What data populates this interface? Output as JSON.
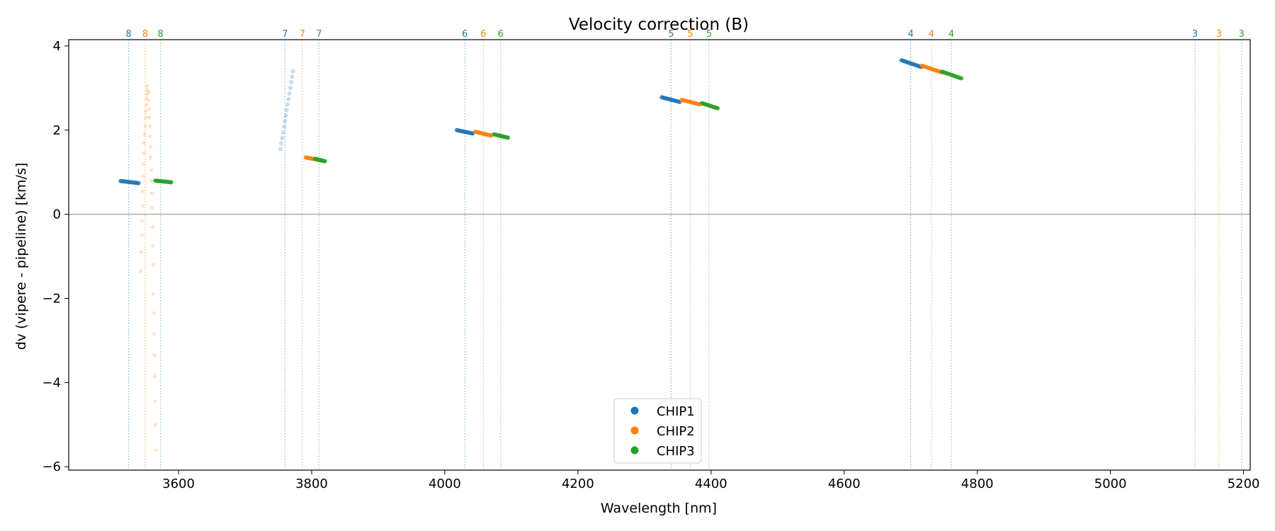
{
  "chart_data": {
    "type": "scatter",
    "title": "Velocity correction (B)",
    "xlabel": "Wavelength [nm]",
    "ylabel": "dv (vipere - pipeline) [km/s]",
    "xlim": [
      3435,
      5210
    ],
    "ylim": [
      -6.08,
      4.15
    ],
    "xticks": [
      3600,
      3800,
      4000,
      4200,
      4400,
      4600,
      4800,
      5000,
      5200
    ],
    "yticks": [
      -6,
      -4,
      -2,
      0,
      2,
      4
    ],
    "xtick_labels": [
      "3600",
      "3800",
      "4000",
      "4200",
      "4400",
      "4600",
      "4800",
      "5000",
      "5200"
    ],
    "ytick_labels": [
      "−6",
      "−4",
      "−2",
      "0",
      "2",
      "4"
    ],
    "zero_line": 0,
    "legend_position": "bottom-center",
    "colors": {
      "CHIP1": "#1f77b4",
      "CHIP2": "#ff7f0e",
      "CHIP3": "#2ca02c",
      "zero": "#888888"
    },
    "series": [
      {
        "name": "CHIP1",
        "color": "#1f77b4"
      },
      {
        "name": "CHIP2",
        "color": "#ff7f0e"
      },
      {
        "name": "CHIP3",
        "color": "#2ca02c"
      }
    ],
    "order_markers": [
      {
        "order": "8",
        "chip": "CHIP1",
        "x": 3525
      },
      {
        "order": "8",
        "chip": "CHIP2",
        "x": 3550
      },
      {
        "order": "8",
        "chip": "CHIP3",
        "x": 3573
      },
      {
        "order": "7",
        "chip": "CHIP1",
        "x": 3760
      },
      {
        "order": "7",
        "chip": "CHIP2",
        "x": 3786
      },
      {
        "order": "7",
        "chip": "CHIP3",
        "x": 3811
      },
      {
        "order": "6",
        "chip": "CHIP1",
        "x": 4030
      },
      {
        "order": "6",
        "chip": "CHIP2",
        "x": 4058
      },
      {
        "order": "6",
        "chip": "CHIP3",
        "x": 4084
      },
      {
        "order": "5",
        "chip": "CHIP1",
        "x": 4340
      },
      {
        "order": "5",
        "chip": "CHIP2",
        "x": 4369
      },
      {
        "order": "5",
        "chip": "CHIP3",
        "x": 4397
      },
      {
        "order": "4",
        "chip": "CHIP1",
        "x": 4700
      },
      {
        "order": "4",
        "chip": "CHIP2",
        "x": 4731
      },
      {
        "order": "4",
        "chip": "CHIP3",
        "x": 4761
      },
      {
        "order": "3",
        "chip": "CHIP1",
        "x": 5127
      },
      {
        "order": "3",
        "chip": "CHIP2",
        "x": 5163
      },
      {
        "order": "3",
        "chip": "CHIP3",
        "x": 5197
      }
    ],
    "segments": [
      {
        "chip": "CHIP1",
        "x": [
          3513,
          3540
        ],
        "y": [
          0.79,
          0.74
        ],
        "alpha": 0.8
      },
      {
        "chip": "CHIP3",
        "x": [
          3565,
          3589
        ],
        "y": [
          0.8,
          0.76
        ],
        "alpha": 0.8
      },
      {
        "chip": "CHIP2",
        "x": [
          3791,
          3811
        ],
        "y": [
          1.35,
          1.29
        ],
        "alpha": 0.8
      },
      {
        "chip": "CHIP3",
        "x": [
          3805,
          3820
        ],
        "y": [
          1.32,
          1.26
        ],
        "alpha": 0.8
      },
      {
        "chip": "CHIP1",
        "x": [
          4018,
          4042
        ],
        "y": [
          2.0,
          1.92
        ],
        "alpha": 0.8
      },
      {
        "chip": "CHIP2",
        "x": [
          4046,
          4070
        ],
        "y": [
          1.96,
          1.87
        ],
        "alpha": 0.8
      },
      {
        "chip": "CHIP3",
        "x": [
          4074,
          4095
        ],
        "y": [
          1.9,
          1.82
        ],
        "alpha": 0.8
      },
      {
        "chip": "CHIP1",
        "x": [
          4326,
          4353
        ],
        "y": [
          2.78,
          2.67
        ],
        "alpha": 0.8
      },
      {
        "chip": "CHIP2",
        "x": [
          4356,
          4383
        ],
        "y": [
          2.72,
          2.61
        ],
        "alpha": 0.8
      },
      {
        "chip": "CHIP3",
        "x": [
          4386,
          4410
        ],
        "y": [
          2.64,
          2.52
        ],
        "alpha": 0.8
      },
      {
        "chip": "CHIP1",
        "x": [
          4686,
          4716
        ],
        "y": [
          3.66,
          3.5
        ],
        "alpha": 0.8
      },
      {
        "chip": "CHIP2",
        "x": [
          4717,
          4747
        ],
        "y": [
          3.53,
          3.37
        ],
        "alpha": 0.8
      },
      {
        "chip": "CHIP3",
        "x": [
          4747,
          4776
        ],
        "y": [
          3.39,
          3.23
        ],
        "alpha": 0.8
      },
      {
        "chip": "CHIP1",
        "x": [
          3753,
          3772
        ],
        "y": [
          1.55,
          3.4
        ],
        "alpha": 0.25
      }
    ],
    "scatter_points": [
      {
        "chip": "CHIP2",
        "x": 3553,
        "y": 3.05
      },
      {
        "chip": "CHIP2",
        "x": 3553,
        "y": 2.95
      },
      {
        "chip": "CHIP2",
        "x": 3553,
        "y": 2.85
      },
      {
        "chip": "CHIP2",
        "x": 3552,
        "y": 2.75
      },
      {
        "chip": "CHIP2",
        "x": 3552,
        "y": 2.6
      },
      {
        "chip": "CHIP2",
        "x": 3551,
        "y": 2.45
      },
      {
        "chip": "CHIP2",
        "x": 3551,
        "y": 2.3
      },
      {
        "chip": "CHIP2",
        "x": 3550,
        "y": 2.1
      },
      {
        "chip": "CHIP2",
        "x": 3549,
        "y": 1.9
      },
      {
        "chip": "CHIP2",
        "x": 3548,
        "y": 1.7
      },
      {
        "chip": "CHIP2",
        "x": 3548,
        "y": 1.45
      },
      {
        "chip": "CHIP2",
        "x": 3547,
        "y": 1.2
      },
      {
        "chip": "CHIP2",
        "x": 3547,
        "y": 0.9
      },
      {
        "chip": "CHIP2",
        "x": 3546,
        "y": 0.55
      },
      {
        "chip": "CHIP2",
        "x": 3546,
        "y": 0.2
      },
      {
        "chip": "CHIP2",
        "x": 3545,
        "y": -0.15
      },
      {
        "chip": "CHIP2",
        "x": 3545,
        "y": -0.5
      },
      {
        "chip": "CHIP2",
        "x": 3544,
        "y": -0.9
      },
      {
        "chip": "CHIP2",
        "x": 3543,
        "y": -1.35
      },
      {
        "chip": "CHIP2",
        "x": 3555,
        "y": 2.9
      },
      {
        "chip": "CHIP2",
        "x": 3555,
        "y": 2.7
      },
      {
        "chip": "CHIP2",
        "x": 3556,
        "y": 2.5
      },
      {
        "chip": "CHIP2",
        "x": 3556,
        "y": 2.3
      },
      {
        "chip": "CHIP2",
        "x": 3557,
        "y": 2.1
      },
      {
        "chip": "CHIP2",
        "x": 3557,
        "y": 1.85
      },
      {
        "chip": "CHIP2",
        "x": 3558,
        "y": 1.6
      },
      {
        "chip": "CHIP2",
        "x": 3558,
        "y": 1.35
      },
      {
        "chip": "CHIP2",
        "x": 3559,
        "y": 1.05
      },
      {
        "chip": "CHIP2",
        "x": 3559,
        "y": 0.8
      },
      {
        "chip": "CHIP2",
        "x": 3560,
        "y": 0.5
      },
      {
        "chip": "CHIP2",
        "x": 3560,
        "y": 0.15
      },
      {
        "chip": "CHIP2",
        "x": 3561,
        "y": -0.3
      },
      {
        "chip": "CHIP2",
        "x": 3561,
        "y": -0.75
      },
      {
        "chip": "CHIP2",
        "x": 3562,
        "y": -1.2
      },
      {
        "chip": "CHIP2",
        "x": 3562,
        "y": -1.9
      },
      {
        "chip": "CHIP2",
        "x": 3563,
        "y": -2.35
      },
      {
        "chip": "CHIP2",
        "x": 3563,
        "y": -2.85
      },
      {
        "chip": "CHIP2",
        "x": 3564,
        "y": -3.35
      },
      {
        "chip": "CHIP2",
        "x": 3564,
        "y": -3.85
      },
      {
        "chip": "CHIP2",
        "x": 3565,
        "y": -4.45
      },
      {
        "chip": "CHIP2",
        "x": 3565,
        "y": -5.0
      },
      {
        "chip": "CHIP2",
        "x": 3566,
        "y": -5.6
      }
    ]
  }
}
